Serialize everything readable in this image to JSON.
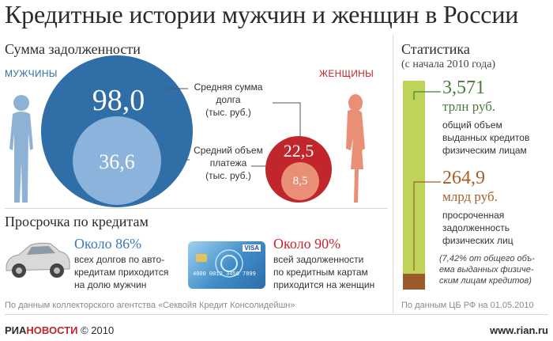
{
  "title": "Кредитные истории мужчин и женщин в России",
  "debt": {
    "heading": "Сумма задолженности",
    "men_label": "МУЖЧИНЫ",
    "women_label": "ЖЕНЩИНЫ",
    "men_avg_debt": "98,0",
    "men_avg_payment": "36,6",
    "women_avg_debt": "22,5",
    "women_avg_payment": "8,5",
    "avg_debt_label": [
      "Средняя сумма",
      "долга",
      "(тыс. руб.)"
    ],
    "avg_payment_label": [
      "Средний объем",
      "платежа",
      "(тыс. руб.)"
    ]
  },
  "overdue": {
    "heading": "Просрочка по кредитам",
    "men_pct": "Около 86%",
    "men_text": [
      "всех долгов по авто-",
      "кредитам приходится",
      "на долю мужчин"
    ],
    "women_pct": "Около 90%",
    "women_text": [
      "всей задолженности",
      "по кредитным картам",
      "приходится на женщин"
    ],
    "card_visa": "VISA",
    "card_number": "4000 0012 3456 7899"
  },
  "source_left": "По данным коллекторского агентства «Секвойя Кредит Консолидейшн»",
  "stats": {
    "heading": "Статистика",
    "subheading": "(с начала 2010 года)",
    "total_value": "3,571",
    "total_unit": "трлн руб.",
    "total_text": [
      "общий объем",
      "выданных кредитов",
      "физическим лицам"
    ],
    "overdue_value": "264,9",
    "overdue_unit": "млрд руб.",
    "overdue_text": [
      "просроченная",
      "задолженность",
      "физических лиц"
    ],
    "overdue_note": [
      "(7,42% от общего объ-",
      "ема выданных физиче-",
      "ским лицам кредитов)"
    ],
    "source": "По данным ЦБ РФ на 01.05.2010",
    "overdue_share": 0.0742,
    "colors": {
      "bar": "#bfd25a",
      "bar_bottom": "#9a5a2a"
    }
  },
  "footer": {
    "logo_ria": "РИА",
    "logo_novosti": "НОВОСТИ",
    "copyright": "© 2010",
    "site": "www.rian.ru"
  },
  "colors": {
    "men_dark": "#2f6ea6",
    "men_light": "#8bb3dc",
    "women_dark": "#c0262b",
    "women_light": "#e98f76"
  }
}
